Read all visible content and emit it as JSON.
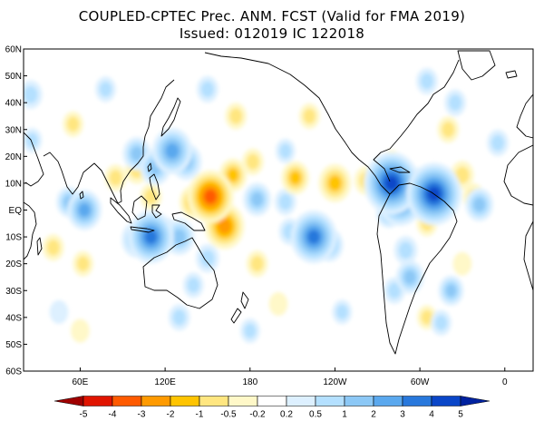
{
  "title": {
    "line1": "COUPLED-CPTEC Prec. ANM. FCST  (Valid for FMA 2019)",
    "line2": "Issued:  012019 IC 122018"
  },
  "map": {
    "lat_labels": [
      "60N",
      "50N",
      "40N",
      "30N",
      "20N",
      "10N",
      "EQ",
      "10S",
      "20S",
      "30S",
      "40S",
      "50S",
      "60S"
    ],
    "lon_labels": [
      "60E",
      "120E",
      "180",
      "120W",
      "60W",
      "0"
    ]
  },
  "colorbar": {
    "levels": [
      "-5",
      "-4",
      "-3",
      "-2",
      "-1",
      "-0.5",
      "-0.2",
      "0.2",
      "0.5",
      "1",
      "2",
      "3",
      "4",
      "5"
    ],
    "colors": [
      "#a00000",
      "#e01400",
      "#ff5a00",
      "#ff9a00",
      "#ffc400",
      "#ffe680",
      "#fff8c8",
      "#ffffff",
      "#ddf0ff",
      "#b4e0ff",
      "#8cc8f6",
      "#5aa8ee",
      "#2878dc",
      "#0a46c8",
      "#0022a0"
    ]
  },
  "anomalies": [
    {
      "lon": 152,
      "lat": 5,
      "value": -3.5
    },
    {
      "lon": 162,
      "lat": -6,
      "value": -2.8
    },
    {
      "lon": 168,
      "lat": 13,
      "value": -1.5
    },
    {
      "lon": 140,
      "lat": 3,
      "value": -1.5
    },
    {
      "lon": 110,
      "lat": 5,
      "value": -0.8
    },
    {
      "lon": 100,
      "lat": 15,
      "value": -1
    },
    {
      "lon": 212,
      "lat": 12,
      "value": -1.5
    },
    {
      "lon": 240,
      "lat": 10,
      "value": -2
    },
    {
      "lon": 262,
      "lat": 11,
      "value": -1
    },
    {
      "lon": 300,
      "lat": 6,
      "value": -1.2
    },
    {
      "lon": 85,
      "lat": 12,
      "value": -0.8
    },
    {
      "lon": 170,
      "lat": 35,
      "value": -0.8
    },
    {
      "lon": 182,
      "lat": 18,
      "value": -0.8
    },
    {
      "lon": 222,
      "lat": 35,
      "value": -0.7
    },
    {
      "lon": 330,
      "lat": 13,
      "value": -1
    },
    {
      "lon": 320,
      "lat": 30,
      "value": -0.8
    },
    {
      "lon": 338,
      "lat": 5,
      "value": -0.8
    },
    {
      "lon": 55,
      "lat": 32,
      "value": -0.7
    },
    {
      "lon": 41,
      "lat": -14,
      "value": -0.8
    },
    {
      "lon": 62,
      "lat": -20,
      "value": -0.7
    },
    {
      "lon": 185,
      "lat": -20,
      "value": -0.8
    },
    {
      "lon": 305,
      "lat": -5,
      "value": -0.7
    },
    {
      "lon": 305,
      "lat": -40,
      "value": -0.6
    },
    {
      "lon": 60,
      "lat": -45,
      "value": -0.5
    },
    {
      "lon": 330,
      "lat": -20,
      "value": -0.5
    },
    {
      "lon": 200,
      "lat": -35,
      "value": -0.5
    },
    {
      "lon": 280,
      "lat": 18,
      "value": -0.5
    },
    {
      "lon": 125,
      "lat": 22,
      "value": 2.8
    },
    {
      "lon": 135,
      "lat": 18,
      "value": 1.8
    },
    {
      "lon": 100,
      "lat": 21,
      "value": 1.5
    },
    {
      "lon": 113,
      "lat": 16,
      "value": 1.8
    },
    {
      "lon": 185,
      "lat": 4,
      "value": 1.5
    },
    {
      "lon": 205,
      "lat": 3,
      "value": 0.8
    },
    {
      "lon": 225,
      "lat": -10,
      "value": 3.5
    },
    {
      "lon": 236,
      "lat": -13,
      "value": 1.5
    },
    {
      "lon": 208,
      "lat": -8,
      "value": 0.8
    },
    {
      "lon": 110,
      "lat": -10,
      "value": 3.5
    },
    {
      "lon": 100,
      "lat": -11,
      "value": 1.8
    },
    {
      "lon": 120,
      "lat": -9,
      "value": 1.5
    },
    {
      "lon": 130,
      "lat": -10,
      "value": 1.8
    },
    {
      "lon": 63,
      "lat": 0,
      "value": 2.2
    },
    {
      "lon": 52,
      "lat": 3,
      "value": 1.2
    },
    {
      "lon": 280,
      "lat": 10,
      "value": 4.5
    },
    {
      "lon": 286,
      "lat": 4,
      "value": 3.5
    },
    {
      "lon": 310,
      "lat": 6,
      "value": 4.5
    },
    {
      "lon": 298,
      "lat": 9,
      "value": 1.8
    },
    {
      "lon": 278,
      "lat": -1,
      "value": 1.2
    },
    {
      "lon": 293,
      "lat": -25,
      "value": 1.5
    },
    {
      "lon": 290,
      "lat": -15,
      "value": 1
    },
    {
      "lon": 282,
      "lat": -30,
      "value": 0.8
    },
    {
      "lon": 342,
      "lat": 2,
      "value": 1.5
    },
    {
      "lon": 355,
      "lat": 25,
      "value": 0.8
    },
    {
      "lon": 325,
      "lat": 40,
      "value": 0.8
    },
    {
      "lon": 305,
      "lat": 48,
      "value": 0.8
    },
    {
      "lon": 25,
      "lat": 43,
      "value": 1
    },
    {
      "lon": 26,
      "lat": 26,
      "value": 0.6
    },
    {
      "lon": 78,
      "lat": 45,
      "value": 0.7
    },
    {
      "lon": 150,
      "lat": 45,
      "value": 0.8
    },
    {
      "lon": 150,
      "lat": -18,
      "value": 1
    },
    {
      "lon": 140,
      "lat": -28,
      "value": 0.7
    },
    {
      "lon": 130,
      "lat": -40,
      "value": 0.8
    },
    {
      "lon": 180,
      "lat": -45,
      "value": 0.6
    },
    {
      "lon": 245,
      "lat": -38,
      "value": 0.6
    },
    {
      "lon": 322,
      "lat": -30,
      "value": 1.2
    },
    {
      "lon": 315,
      "lat": -42,
      "value": 0.7
    },
    {
      "lon": 205,
      "lat": 22,
      "value": 0.6
    },
    {
      "lon": 45,
      "lat": -38,
      "value": 0.5
    }
  ]
}
